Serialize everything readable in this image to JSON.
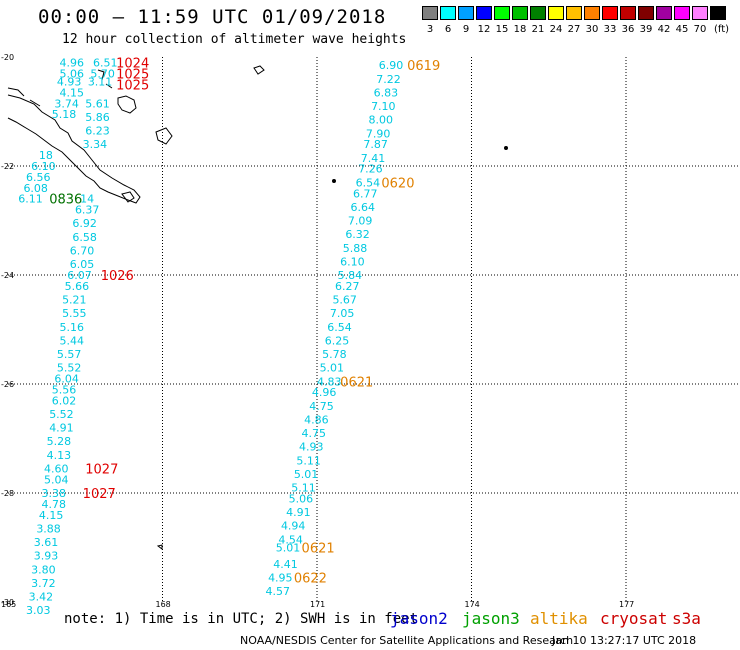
{
  "title": "00:00 – 11:59 UTC 01/09/2018",
  "subtitle": "12 hour collection of altimeter wave heights",
  "legend": {
    "unit": "(ft)",
    "items": [
      {
        "label": "3",
        "color": "#808080"
      },
      {
        "label": "6",
        "color": "#00ffff"
      },
      {
        "label": "9",
        "color": "#00a0ff"
      },
      {
        "label": "12",
        "color": "#0000ff"
      },
      {
        "label": "15",
        "color": "#00ff00"
      },
      {
        "label": "18",
        "color": "#00c000"
      },
      {
        "label": "21",
        "color": "#008000"
      },
      {
        "label": "24",
        "color": "#ffff00"
      },
      {
        "label": "27",
        "color": "#ffc000"
      },
      {
        "label": "30",
        "color": "#ff8000"
      },
      {
        "label": "33",
        "color": "#ff0000"
      },
      {
        "label": "36",
        "color": "#c00000"
      },
      {
        "label": "39",
        "color": "#800000"
      },
      {
        "label": "42",
        "color": "#a000a0"
      },
      {
        "label": "45",
        "color": "#ff00ff"
      },
      {
        "label": "70",
        "color": "#ff80ff"
      },
      {
        "label": "",
        "color": "#000000"
      }
    ]
  },
  "axes": {
    "lat_labels": [
      "-20",
      "-22",
      "-24",
      "-26",
      "-28",
      "-30"
    ],
    "lon_labels": [
      "165",
      "168",
      "171",
      "174",
      "177"
    ]
  },
  "tracks": [
    {
      "color": "#00c8e0",
      "items": [
        {
          "v": "4.96",
          "lon": 166.0,
          "lat": -20.1
        },
        {
          "v": "6.51",
          "lon": 166.65,
          "lat": -20.1
        },
        {
          "v": "5.06",
          "lon": 166.0,
          "lat": -20.3
        },
        {
          "v": "5.70",
          "lon": 166.6,
          "lat": -20.3
        },
        {
          "v": "4.93",
          "lon": 165.95,
          "lat": -20.45
        },
        {
          "v": "3.11",
          "lon": 166.55,
          "lat": -20.45
        },
        {
          "v": "4.15",
          "lon": 166.0,
          "lat": -20.65
        },
        {
          "v": "3.74",
          "lon": 165.9,
          "lat": -20.85
        },
        {
          "v": "5.61",
          "lon": 166.5,
          "lat": -20.85
        },
        {
          "v": "5.18",
          "lon": 165.85,
          "lat": -21.05
        },
        {
          "v": "5.86",
          "lon": 166.5,
          "lat": -21.1
        },
        {
          "v": "6.23",
          "lon": 166.5,
          "lat": -21.35
        },
        {
          "v": "3.34",
          "lon": 166.45,
          "lat": -21.6
        },
        {
          "v": "18",
          "lon": 165.6,
          "lat": -21.8
        },
        {
          "v": "6.10",
          "lon": 165.45,
          "lat": -22.0
        },
        {
          "v": "6.56",
          "lon": 165.35,
          "lat": -22.2
        },
        {
          "v": "6.08",
          "lon": 165.3,
          "lat": -22.4
        },
        {
          "v": "6.11",
          "lon": 165.2,
          "lat": -22.6
        },
        {
          "v": "14",
          "lon": 166.4,
          "lat": -22.6
        },
        {
          "v": "6.37",
          "lon": 166.3,
          "lat": -22.8
        },
        {
          "v": "6.92",
          "lon": 166.25,
          "lat": -23.05
        },
        {
          "v": "6.58",
          "lon": 166.25,
          "lat": -23.3
        },
        {
          "v": "6.70",
          "lon": 166.2,
          "lat": -23.55
        },
        {
          "v": "6.05",
          "lon": 166.2,
          "lat": -23.8
        },
        {
          "v": "6.07",
          "lon": 166.15,
          "lat": -24.0
        },
        {
          "v": "5.66",
          "lon": 166.1,
          "lat": -24.2
        },
        {
          "v": "5.21",
          "lon": 166.05,
          "lat": -24.45
        },
        {
          "v": "5.55",
          "lon": 166.05,
          "lat": -24.7
        },
        {
          "v": "5.16",
          "lon": 166.0,
          "lat": -24.95
        },
        {
          "v": "5.44",
          "lon": 166.0,
          "lat": -25.2
        },
        {
          "v": "5.57",
          "lon": 165.95,
          "lat": -25.45
        },
        {
          "v": "5.52",
          "lon": 165.95,
          "lat": -25.7
        },
        {
          "v": "6.04",
          "lon": 165.9,
          "lat": -25.9
        },
        {
          "v": "5.56",
          "lon": 165.85,
          "lat": -26.1
        },
        {
          "v": "6.02",
          "lon": 165.85,
          "lat": -26.3
        },
        {
          "v": "5.52",
          "lon": 165.8,
          "lat": -26.55
        },
        {
          "v": "4.91",
          "lon": 165.8,
          "lat": -26.8
        },
        {
          "v": "5.28",
          "lon": 165.75,
          "lat": -27.05
        },
        {
          "v": "4.13",
          "lon": 165.75,
          "lat": -27.3
        },
        {
          "v": "4.60",
          "lon": 165.7,
          "lat": -27.55
        },
        {
          "v": "5.04",
          "lon": 165.7,
          "lat": -27.75
        },
        {
          "v": "3.38",
          "lon": 165.65,
          "lat": -28.0
        },
        {
          "v": "4.78",
          "lon": 165.65,
          "lat": -28.2
        },
        {
          "v": "4.15",
          "lon": 165.6,
          "lat": -28.4
        },
        {
          "v": "3.88",
          "lon": 165.55,
          "lat": -28.65
        },
        {
          "v": "3.61",
          "lon": 165.5,
          "lat": -28.9
        },
        {
          "v": "3.93",
          "lon": 165.5,
          "lat": -29.15
        },
        {
          "v": "3.80",
          "lon": 165.45,
          "lat": -29.4
        },
        {
          "v": "3.72",
          "lon": 165.45,
          "lat": -29.65
        },
        {
          "v": "3.42",
          "lon": 165.4,
          "lat": -29.9
        },
        {
          "v": "3.03",
          "lon": 165.35,
          "lat": -30.15
        },
        {
          "v": "6.90",
          "lon": 172.2,
          "lat": -20.15
        },
        {
          "v": "7.22",
          "lon": 172.15,
          "lat": -20.4
        },
        {
          "v": "6.83",
          "lon": 172.1,
          "lat": -20.65
        },
        {
          "v": "7.10",
          "lon": 172.05,
          "lat": -20.9
        },
        {
          "v": "8.00",
          "lon": 172.0,
          "lat": -21.15
        },
        {
          "v": "7.90",
          "lon": 171.95,
          "lat": -21.4
        },
        {
          "v": "7.87",
          "lon": 171.9,
          "lat": -21.6
        },
        {
          "v": "7.41",
          "lon": 171.85,
          "lat": -21.85
        },
        {
          "v": "7.26",
          "lon": 171.8,
          "lat": -22.05
        },
        {
          "v": "6.54",
          "lon": 171.75,
          "lat": -22.3
        },
        {
          "v": "6.77",
          "lon": 171.7,
          "lat": -22.5
        },
        {
          "v": "6.64",
          "lon": 171.65,
          "lat": -22.75
        },
        {
          "v": "7.09",
          "lon": 171.6,
          "lat": -23.0
        },
        {
          "v": "6.32",
          "lon": 171.55,
          "lat": -23.25
        },
        {
          "v": "5.88",
          "lon": 171.5,
          "lat": -23.5
        },
        {
          "v": "6.10",
          "lon": 171.45,
          "lat": -23.75
        },
        {
          "v": "5.84",
          "lon": 171.4,
          "lat": -24.0
        },
        {
          "v": "6.27",
          "lon": 171.35,
          "lat": -24.2
        },
        {
          "v": "5.67",
          "lon": 171.3,
          "lat": -24.45
        },
        {
          "v": "7.05",
          "lon": 171.25,
          "lat": -24.7
        },
        {
          "v": "6.54",
          "lon": 171.2,
          "lat": -24.95
        },
        {
          "v": "6.25",
          "lon": 171.15,
          "lat": -25.2
        },
        {
          "v": "5.78",
          "lon": 171.1,
          "lat": -25.45
        },
        {
          "v": "5.01",
          "lon": 171.05,
          "lat": -25.7
        },
        {
          "v": "4.83",
          "lon": 171.0,
          "lat": -25.95
        },
        {
          "v": "4.96",
          "lon": 170.9,
          "lat": -26.15
        },
        {
          "v": "4.75",
          "lon": 170.85,
          "lat": -26.4
        },
        {
          "v": "4.86",
          "lon": 170.75,
          "lat": -26.65
        },
        {
          "v": "4.75",
          "lon": 170.7,
          "lat": -26.9
        },
        {
          "v": "4.93",
          "lon": 170.65,
          "lat": -27.15
        },
        {
          "v": "5.11",
          "lon": 170.6,
          "lat": -27.4
        },
        {
          "v": "5.01",
          "lon": 170.55,
          "lat": -27.65
        },
        {
          "v": "5.11",
          "lon": 170.5,
          "lat": -27.9
        },
        {
          "v": "5.06",
          "lon": 170.45,
          "lat": -28.1
        },
        {
          "v": "4.91",
          "lon": 170.4,
          "lat": -28.35
        },
        {
          "v": "4.94",
          "lon": 170.3,
          "lat": -28.6
        },
        {
          "v": "4.54",
          "lon": 170.25,
          "lat": -28.85
        },
        {
          "v": "5.01",
          "lon": 170.2,
          "lat": -29.0
        },
        {
          "v": "4.41",
          "lon": 170.15,
          "lat": -29.3
        },
        {
          "v": "4.95",
          "lon": 170.05,
          "lat": -29.55
        },
        {
          "v": "4.57",
          "lon": 170.0,
          "lat": -29.8
        }
      ]
    }
  ],
  "time_labels": [
    {
      "text": "1024",
      "color": "#e00000",
      "lon": 167.1,
      "lat": -20.1
    },
    {
      "text": "1025",
      "color": "#e00000",
      "lon": 167.1,
      "lat": -20.3
    },
    {
      "text": "1025",
      "color": "#e00000",
      "lon": 167.1,
      "lat": -20.5
    },
    {
      "text": "0836",
      "color": "#007000",
      "lon": 165.8,
      "lat": -22.6
    },
    {
      "text": "1026",
      "color": "#e00000",
      "lon": 166.8,
      "lat": -24.0
    },
    {
      "text": "1027",
      "color": "#e00000",
      "lon": 166.5,
      "lat": -27.55
    },
    {
      "text": "1027",
      "color": "#e00000",
      "lon": 166.45,
      "lat": -28.0
    },
    {
      "text": "0619",
      "color": "#e08000",
      "lon": 172.75,
      "lat": -20.15
    },
    {
      "text": "0620",
      "color": "#e08000",
      "lon": 172.25,
      "lat": -22.3
    },
    {
      "text": "0621",
      "color": "#e08000",
      "lon": 171.45,
      "lat": -25.95
    },
    {
      "text": "0621",
      "color": "#e08000",
      "lon": 170.7,
      "lat": -29.0
    },
    {
      "text": "0622",
      "color": "#e08000",
      "lon": 170.55,
      "lat": -29.55
    }
  ],
  "note": "note: 1) Time is in UTC; 2) SWH is in feet",
  "satellites": [
    {
      "name": "jason2",
      "color": "#0000cc"
    },
    {
      "name": "jason3",
      "color": "#00a000"
    },
    {
      "name": "altika",
      "color": "#e09000"
    },
    {
      "name": "cryosat",
      "color": "#cc0000"
    },
    {
      "name": "s3a",
      "color": "#cc0000"
    }
  ],
  "credit": "NOAA/NESDIS Center for Satellite Applications and Research",
  "timestamp": "Jan 10 13:27:17 UTC 2018"
}
